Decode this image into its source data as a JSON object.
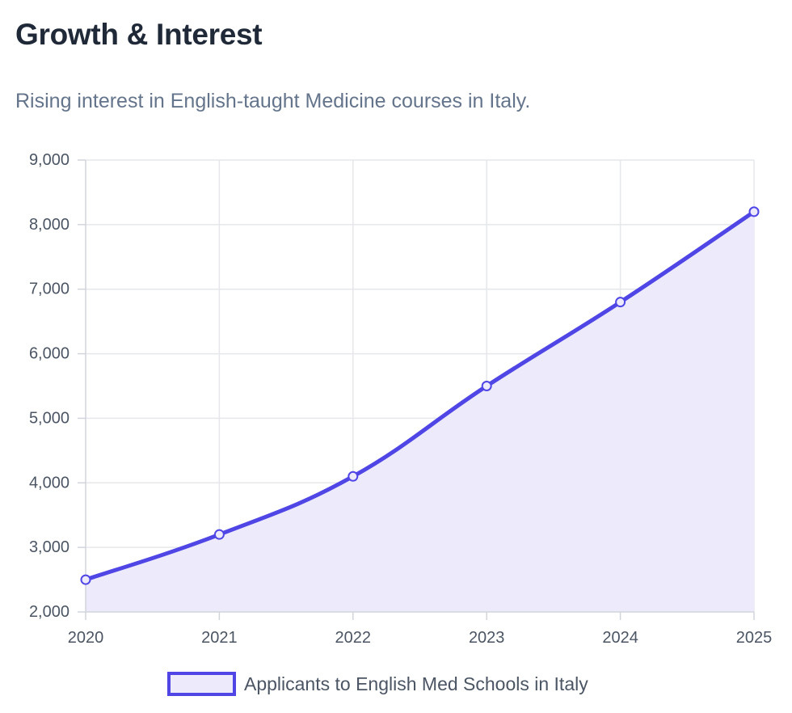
{
  "header": {
    "title": "Growth & Interest",
    "subtitle": "Rising interest in English-taught Medicine courses in Italy."
  },
  "chart_data": {
    "type": "area",
    "categories": [
      "2020",
      "2021",
      "2022",
      "2023",
      "2024",
      "2025"
    ],
    "series": [
      {
        "name": "Applicants to English Med Schools in Italy",
        "values": [
          2500,
          3200,
          4100,
          5500,
          6800,
          8200
        ],
        "color": "#4f46e5",
        "fill": "#eceafb"
      }
    ],
    "ylim": [
      2000,
      9000
    ],
    "yticks": [
      "2,000",
      "3,000",
      "4,000",
      "5,000",
      "6,000",
      "7,000",
      "8,000",
      "9,000"
    ],
    "grid": true,
    "legend": "bottom",
    "xlabel": "",
    "ylabel": ""
  }
}
